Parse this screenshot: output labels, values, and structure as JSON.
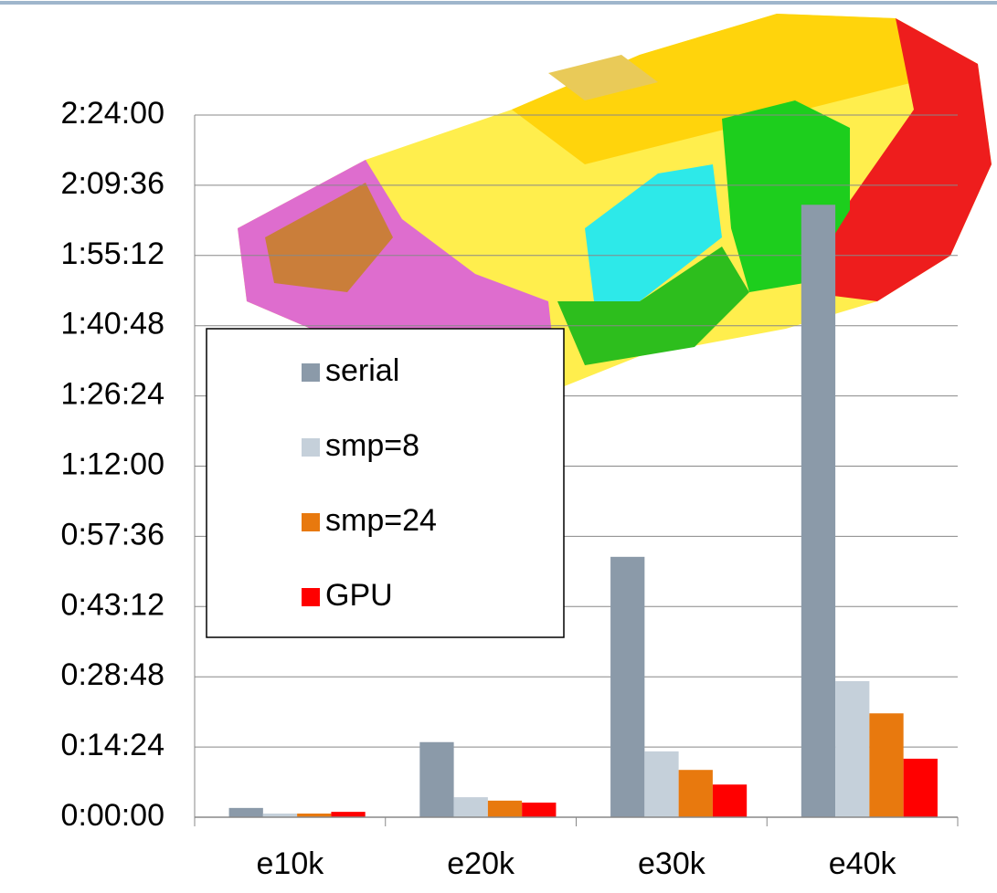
{
  "chart_data": {
    "type": "bar",
    "categories": [
      "e10k",
      "e20k",
      "e30k",
      "e40k"
    ],
    "series": [
      {
        "name": "serial",
        "color": "#8b9aa9",
        "values": [
          1.9,
          15.4,
          53.4,
          125.6
        ]
      },
      {
        "name": "smp=8",
        "color": "#c5d0da",
        "values": [
          0.75,
          4.1,
          13.5,
          27.9
        ]
      },
      {
        "name": "smp=24",
        "color": "#e8790e",
        "values": [
          0.75,
          3.4,
          9.7,
          21.3
        ]
      },
      {
        "name": "GPU",
        "color": "#ff0000",
        "values": [
          1.1,
          3.0,
          6.7,
          12.0
        ]
      }
    ],
    "ylim": [
      0,
      144
    ],
    "yticks": [
      {
        "value": 0,
        "label": "0:00:00"
      },
      {
        "value": 14.4,
        "label": "0:14:24"
      },
      {
        "value": 28.8,
        "label": "0:28:48"
      },
      {
        "value": 43.2,
        "label": "0:43:12"
      },
      {
        "value": 57.6,
        "label": "0:57:36"
      },
      {
        "value": 72,
        "label": "1:12:00"
      },
      {
        "value": 86.4,
        "label": "1:26:24"
      },
      {
        "value": 100.8,
        "label": "1:40:48"
      },
      {
        "value": 115.2,
        "label": "1:55:12"
      },
      {
        "value": 129.6,
        "label": "2:09:36"
      },
      {
        "value": 144,
        "label": "2:24:00"
      }
    ],
    "grid": true
  }
}
